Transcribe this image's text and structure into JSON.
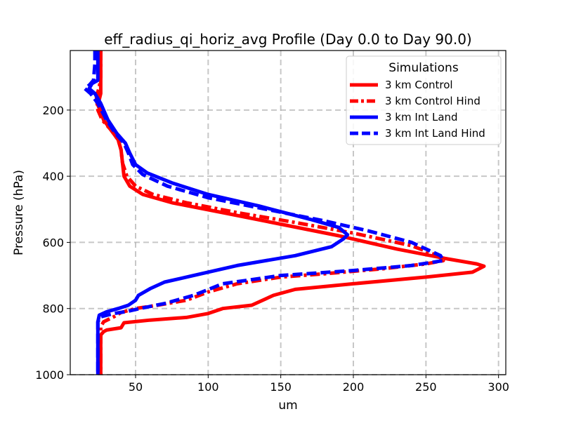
{
  "chart_data": {
    "type": "line",
    "title": "eff_radius_qi_horiz_avg Profile (Day 0.0 to Day 90.0)",
    "xlabel": "um",
    "ylabel": "Pressure (hPa)",
    "xlim": [
      5,
      305
    ],
    "ylim": [
      1000,
      20
    ],
    "y_inverted": true,
    "xticks": [
      50,
      100,
      150,
      200,
      250,
      300
    ],
    "yticks": [
      200,
      400,
      600,
      800,
      1000
    ],
    "grid": true,
    "legend": {
      "title": "Simulations",
      "placement": "top-right"
    },
    "series": [
      {
        "name": "3 km Control",
        "color": "#ff0000",
        "style": "solid",
        "points": [
          [
            26,
            20
          ],
          [
            26,
            100
          ],
          [
            26,
            130
          ],
          [
            26,
            150
          ],
          [
            24,
            185
          ],
          [
            26,
            205
          ],
          [
            28,
            230
          ],
          [
            33,
            260
          ],
          [
            38,
            290
          ],
          [
            40,
            320
          ],
          [
            41,
            360
          ],
          [
            42,
            400
          ],
          [
            46,
            430
          ],
          [
            55,
            455
          ],
          [
            75,
            480
          ],
          [
            110,
            510
          ],
          [
            150,
            545
          ],
          [
            190,
            580
          ],
          [
            230,
            620
          ],
          [
            265,
            650
          ],
          [
            285,
            665
          ],
          [
            290,
            672
          ],
          [
            282,
            690
          ],
          [
            250,
            705
          ],
          [
            200,
            725
          ],
          [
            160,
            742
          ],
          [
            145,
            760
          ],
          [
            130,
            790
          ],
          [
            110,
            800
          ],
          [
            100,
            815
          ],
          [
            85,
            827
          ],
          [
            60,
            835
          ],
          [
            42,
            843
          ],
          [
            40,
            858
          ],
          [
            30,
            865
          ],
          [
            28,
            870
          ],
          [
            26,
            880
          ],
          [
            26,
            1000
          ]
        ]
      },
      {
        "name": "3 km Control Hind",
        "color": "#ff0000",
        "style": "dashdot",
        "points": [
          [
            26,
            20
          ],
          [
            26,
            100
          ],
          [
            25,
            130
          ],
          [
            23,
            160
          ],
          [
            24,
            200
          ],
          [
            27,
            230
          ],
          [
            33,
            260
          ],
          [
            38,
            290
          ],
          [
            40,
            320
          ],
          [
            41,
            360
          ],
          [
            44,
            400
          ],
          [
            50,
            430
          ],
          [
            62,
            455
          ],
          [
            85,
            480
          ],
          [
            120,
            510
          ],
          [
            160,
            540
          ],
          [
            200,
            572
          ],
          [
            240,
            610
          ],
          [
            258,
            640
          ],
          [
            262,
            655
          ],
          [
            250,
            665
          ],
          [
            220,
            680
          ],
          [
            180,
            695
          ],
          [
            150,
            705
          ],
          [
            120,
            725
          ],
          [
            100,
            750
          ],
          [
            85,
            775
          ],
          [
            65,
            790
          ],
          [
            50,
            800
          ],
          [
            40,
            812
          ],
          [
            35,
            825
          ],
          [
            28,
            840
          ],
          [
            26,
            855
          ],
          [
            26,
            880
          ],
          [
            26,
            1000
          ]
        ]
      },
      {
        "name": "3 km Int Land",
        "color": "#0000ff",
        "style": "solid",
        "points": [
          [
            24,
            20
          ],
          [
            24,
            60
          ],
          [
            24,
            110
          ],
          [
            20,
            120
          ],
          [
            18,
            135
          ],
          [
            22,
            150
          ],
          [
            26,
            180
          ],
          [
            31,
            230
          ],
          [
            37,
            270
          ],
          [
            43,
            300
          ],
          [
            46,
            330
          ],
          [
            50,
            365
          ],
          [
            58,
            390
          ],
          [
            75,
            420
          ],
          [
            100,
            455
          ],
          [
            135,
            490
          ],
          [
            170,
            530
          ],
          [
            190,
            555
          ],
          [
            196,
            577
          ],
          [
            193,
            590
          ],
          [
            185,
            613
          ],
          [
            160,
            640
          ],
          [
            120,
            670
          ],
          [
            90,
            700
          ],
          [
            70,
            720
          ],
          [
            60,
            740
          ],
          [
            52,
            760
          ],
          [
            50,
            775
          ],
          [
            45,
            790
          ],
          [
            38,
            800
          ],
          [
            30,
            810
          ],
          [
            25,
            820
          ],
          [
            24,
            840
          ],
          [
            24,
            1000
          ]
        ]
      },
      {
        "name": "3 km Int Land Hind",
        "color": "#0000ff",
        "style": "dashed",
        "points": [
          [
            22,
            20
          ],
          [
            22,
            60
          ],
          [
            21,
            110
          ],
          [
            18,
            125
          ],
          [
            15,
            135
          ],
          [
            19,
            150
          ],
          [
            24,
            180
          ],
          [
            30,
            230
          ],
          [
            36,
            270
          ],
          [
            42,
            300
          ],
          [
            45,
            330
          ],
          [
            48,
            365
          ],
          [
            55,
            395
          ],
          [
            72,
            430
          ],
          [
            100,
            465
          ],
          [
            140,
            500
          ],
          [
            180,
            535
          ],
          [
            210,
            565
          ],
          [
            240,
            600
          ],
          [
            260,
            640
          ],
          [
            262,
            655
          ],
          [
            240,
            670
          ],
          [
            200,
            685
          ],
          [
            150,
            700
          ],
          [
            110,
            725
          ],
          [
            90,
            760
          ],
          [
            70,
            785
          ],
          [
            55,
            798
          ],
          [
            45,
            808
          ],
          [
            35,
            815
          ],
          [
            26,
            825
          ],
          [
            24,
            840
          ],
          [
            24,
            1000
          ]
        ]
      }
    ]
  }
}
